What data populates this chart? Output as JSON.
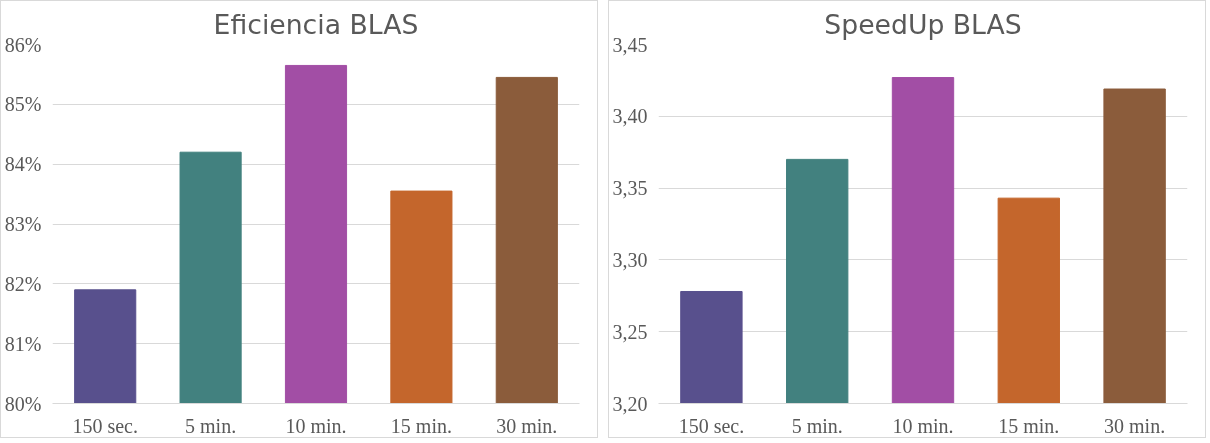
{
  "chart_data": [
    {
      "type": "bar",
      "title": "Eficiencia BLAS",
      "categories": [
        "150 sec.",
        "5 min.",
        "10 min.",
        "15 min.",
        "30 min."
      ],
      "values": [
        81.9,
        84.2,
        85.65,
        83.55,
        85.45
      ],
      "colors": [
        "#58508d",
        "#42817f",
        "#a24ea5",
        "#c4662c",
        "#8b5c3b"
      ],
      "ylim": [
        80,
        86
      ],
      "yticks": [
        {
          "value": 80,
          "label": "80%"
        },
        {
          "value": 81,
          "label": "81%"
        },
        {
          "value": 82,
          "label": "82%"
        },
        {
          "value": 83,
          "label": "83%"
        },
        {
          "value": 84,
          "label": "84%"
        },
        {
          "value": 85,
          "label": "85%"
        },
        {
          "value": 86,
          "label": "86%"
        }
      ],
      "grid": "y"
    },
    {
      "type": "bar",
      "title": "SpeedUp BLAS",
      "categories": [
        "150 sec.",
        "5 min.",
        "10 min.",
        "15 min.",
        "30 min."
      ],
      "values": [
        3.278,
        3.37,
        3.427,
        3.343,
        3.419
      ],
      "colors": [
        "#58508d",
        "#42817f",
        "#a24ea5",
        "#c4662c",
        "#8b5c3b"
      ],
      "ylim": [
        3.2,
        3.45
      ],
      "yticks": [
        {
          "value": 3.2,
          "label": "3,20"
        },
        {
          "value": 3.25,
          "label": "3,25"
        },
        {
          "value": 3.3,
          "label": "3,30"
        },
        {
          "value": 3.35,
          "label": "3,35"
        },
        {
          "value": 3.4,
          "label": "3,40"
        },
        {
          "value": 3.45,
          "label": "3,45"
        }
      ],
      "grid": "y"
    }
  ]
}
